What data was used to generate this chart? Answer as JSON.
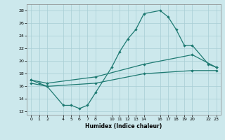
{
  "xlabel": "Humidex (Indice chaleur)",
  "bg_color": "#cce8ec",
  "grid_color": "#a8cdd4",
  "line_color": "#1e7a72",
  "xlim": [
    -0.5,
    23.5
  ],
  "ylim": [
    11.5,
    29
  ],
  "xticks": [
    0,
    1,
    2,
    4,
    5,
    6,
    7,
    8,
    10,
    11,
    12,
    13,
    14,
    16,
    17,
    18,
    19,
    20,
    22,
    23
  ],
  "yticks": [
    12,
    14,
    16,
    18,
    20,
    22,
    24,
    26,
    28
  ],
  "line1_x": [
    0,
    1,
    2,
    4,
    5,
    6,
    7,
    8,
    10,
    11,
    12,
    13,
    14,
    16,
    17,
    18,
    19,
    20,
    22,
    23
  ],
  "line1_y": [
    17.0,
    16.5,
    16.0,
    13.0,
    13.0,
    12.5,
    13.0,
    15.0,
    19.0,
    21.5,
    23.5,
    25.0,
    27.5,
    28.0,
    27.0,
    25.0,
    22.5,
    22.5,
    19.5,
    19.0
  ],
  "line2_x": [
    0,
    2,
    8,
    14,
    20,
    23
  ],
  "line2_y": [
    17.0,
    16.5,
    17.5,
    19.5,
    21.0,
    19.0
  ],
  "line3_x": [
    0,
    2,
    8,
    14,
    20,
    23
  ],
  "line3_y": [
    16.5,
    16.0,
    16.5,
    18.0,
    18.5,
    18.5
  ]
}
